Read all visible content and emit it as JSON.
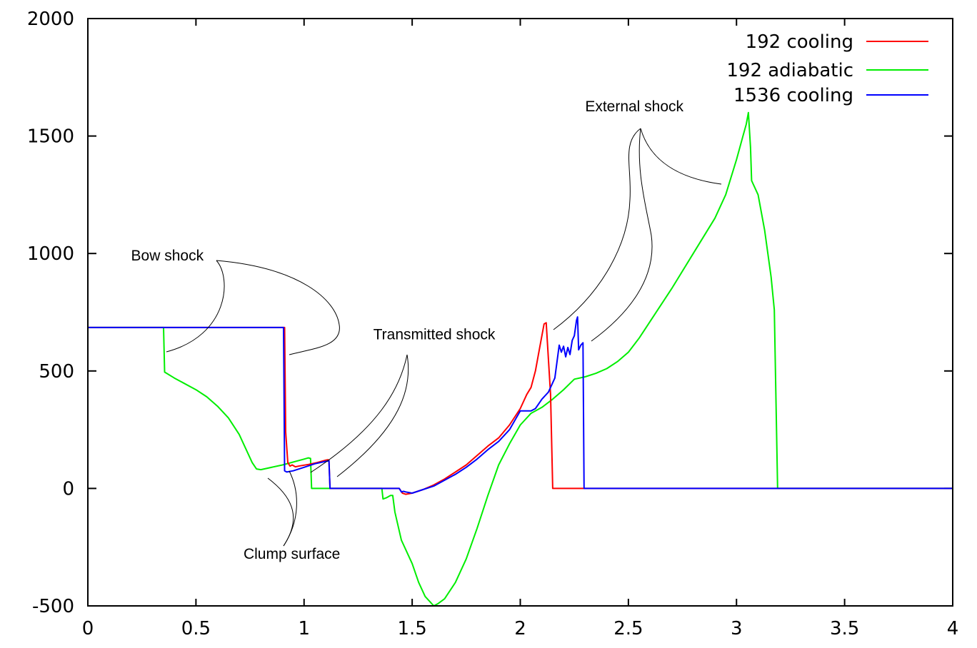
{
  "chart_data": {
    "type": "line",
    "title": "",
    "xlabel": "",
    "ylabel": "",
    "xlim": [
      0,
      4
    ],
    "ylim": [
      -500,
      2000
    ],
    "grid": false,
    "legend_position": "top-right",
    "x_ticks": [
      {
        "value": 0,
        "label": "0"
      },
      {
        "value": 0.5,
        "label": "0.5"
      },
      {
        "value": 1,
        "label": "1"
      },
      {
        "value": 1.5,
        "label": "1.5"
      },
      {
        "value": 2,
        "label": "2"
      },
      {
        "value": 2.5,
        "label": "2.5"
      },
      {
        "value": 3,
        "label": "3"
      },
      {
        "value": 3.5,
        "label": "3.5"
      },
      {
        "value": 4,
        "label": "4"
      }
    ],
    "y_ticks": [
      {
        "value": -500,
        "label": "-500"
      },
      {
        "value": 0,
        "label": "0"
      },
      {
        "value": 500,
        "label": "500"
      },
      {
        "value": 1000,
        "label": "1000"
      },
      {
        "value": 1500,
        "label": "1500"
      },
      {
        "value": 2000,
        "label": "2000"
      }
    ],
    "series": [
      {
        "name": "192 cooling",
        "color": "#ff0000",
        "points": [
          [
            0,
            685
          ],
          [
            0.91,
            685
          ],
          [
            0.915,
            240
          ],
          [
            0.925,
            110
          ],
          [
            0.935,
            95
          ],
          [
            0.945,
            100
          ],
          [
            0.96,
            92
          ],
          [
            0.98,
            96
          ],
          [
            1.02,
            102
          ],
          [
            1.06,
            110
          ],
          [
            1.1,
            120
          ],
          [
            1.11,
            122
          ],
          [
            1.115,
            120
          ],
          [
            1.12,
            0
          ],
          [
            1.44,
            0
          ],
          [
            1.455,
            -20
          ],
          [
            1.47,
            -25
          ],
          [
            1.5,
            -20
          ],
          [
            1.55,
            -5
          ],
          [
            1.6,
            15
          ],
          [
            1.65,
            40
          ],
          [
            1.7,
            70
          ],
          [
            1.75,
            100
          ],
          [
            1.8,
            140
          ],
          [
            1.85,
            180
          ],
          [
            1.9,
            215
          ],
          [
            1.95,
            270
          ],
          [
            2.0,
            340
          ],
          [
            2.03,
            400
          ],
          [
            2.05,
            430
          ],
          [
            2.07,
            500
          ],
          [
            2.09,
            600
          ],
          [
            2.11,
            700
          ],
          [
            2.12,
            705
          ],
          [
            2.14,
            400
          ],
          [
            2.15,
            0
          ],
          [
            4,
            0
          ]
        ]
      },
      {
        "name": "192 adiabatic",
        "color": "#00ee00",
        "points": [
          [
            0,
            685
          ],
          [
            0.35,
            685
          ],
          [
            0.355,
            495
          ],
          [
            0.4,
            470
          ],
          [
            0.5,
            420
          ],
          [
            0.55,
            390
          ],
          [
            0.6,
            350
          ],
          [
            0.65,
            300
          ],
          [
            0.7,
            230
          ],
          [
            0.73,
            170
          ],
          [
            0.76,
            110
          ],
          [
            0.78,
            83
          ],
          [
            0.8,
            80
          ],
          [
            0.9,
            100
          ],
          [
            1.0,
            125
          ],
          [
            1.02,
            130
          ],
          [
            1.03,
            128
          ],
          [
            1.035,
            0
          ],
          [
            1.36,
            0
          ],
          [
            1.365,
            -45
          ],
          [
            1.38,
            -40
          ],
          [
            1.4,
            -30
          ],
          [
            1.41,
            -30
          ],
          [
            1.42,
            -100
          ],
          [
            1.45,
            -220
          ],
          [
            1.5,
            -320
          ],
          [
            1.53,
            -400
          ],
          [
            1.56,
            -460
          ],
          [
            1.6,
            -500
          ],
          [
            1.62,
            -490
          ],
          [
            1.65,
            -470
          ],
          [
            1.7,
            -400
          ],
          [
            1.75,
            -300
          ],
          [
            1.8,
            -170
          ],
          [
            1.85,
            -30
          ],
          [
            1.9,
            100
          ],
          [
            1.95,
            190
          ],
          [
            2.0,
            270
          ],
          [
            2.05,
            320
          ],
          [
            2.1,
            345
          ],
          [
            2.15,
            380
          ],
          [
            2.2,
            420
          ],
          [
            2.25,
            465
          ],
          [
            2.3,
            475
          ],
          [
            2.35,
            490
          ],
          [
            2.4,
            510
          ],
          [
            2.45,
            540
          ],
          [
            2.5,
            580
          ],
          [
            2.55,
            640
          ],
          [
            2.6,
            710
          ],
          [
            2.7,
            850
          ],
          [
            2.8,
            1000
          ],
          [
            2.9,
            1150
          ],
          [
            2.95,
            1250
          ],
          [
            3.0,
            1400
          ],
          [
            3.03,
            1500
          ],
          [
            3.045,
            1550
          ],
          [
            3.055,
            1600
          ],
          [
            3.065,
            1450
          ],
          [
            3.07,
            1310
          ],
          [
            3.1,
            1250
          ],
          [
            3.13,
            1100
          ],
          [
            3.16,
            900
          ],
          [
            3.175,
            760
          ],
          [
            3.19,
            0
          ],
          [
            4,
            0
          ]
        ]
      },
      {
        "name": "1536 cooling",
        "color": "#0000ff",
        "points": [
          [
            0,
            685
          ],
          [
            0.905,
            685
          ],
          [
            0.91,
            75
          ],
          [
            0.92,
            70
          ],
          [
            0.95,
            75
          ],
          [
            1.0,
            90
          ],
          [
            1.05,
            105
          ],
          [
            1.1,
            115
          ],
          [
            1.115,
            118
          ],
          [
            1.12,
            0
          ],
          [
            1.44,
            0
          ],
          [
            1.45,
            -15
          ],
          [
            1.46,
            -12
          ],
          [
            1.47,
            -15
          ],
          [
            1.5,
            -20
          ],
          [
            1.55,
            -5
          ],
          [
            1.6,
            10
          ],
          [
            1.65,
            35
          ],
          [
            1.7,
            60
          ],
          [
            1.75,
            90
          ],
          [
            1.8,
            125
          ],
          [
            1.85,
            165
          ],
          [
            1.9,
            200
          ],
          [
            1.95,
            250
          ],
          [
            2.0,
            330
          ],
          [
            2.05,
            330
          ],
          [
            2.07,
            340
          ],
          [
            2.1,
            380
          ],
          [
            2.13,
            410
          ],
          [
            2.16,
            470
          ],
          [
            2.18,
            610
          ],
          [
            2.19,
            580
          ],
          [
            2.2,
            605
          ],
          [
            2.21,
            560
          ],
          [
            2.22,
            600
          ],
          [
            2.23,
            570
          ],
          [
            2.24,
            630
          ],
          [
            2.25,
            650
          ],
          [
            2.26,
            715
          ],
          [
            2.265,
            730
          ],
          [
            2.27,
            590
          ],
          [
            2.28,
            610
          ],
          [
            2.29,
            620
          ],
          [
            2.295,
            0
          ],
          [
            4,
            0
          ]
        ]
      }
    ],
    "annotations": [
      {
        "text": "Bow shock",
        "x": 0.2,
        "y": 970
      },
      {
        "text": "Clump surface",
        "x": 0.72,
        "y": -300
      },
      {
        "text": "Transmitted shock",
        "x": 1.32,
        "y": 635
      },
      {
        "text": "External shock",
        "x": 2.3,
        "y": 1605
      }
    ]
  }
}
